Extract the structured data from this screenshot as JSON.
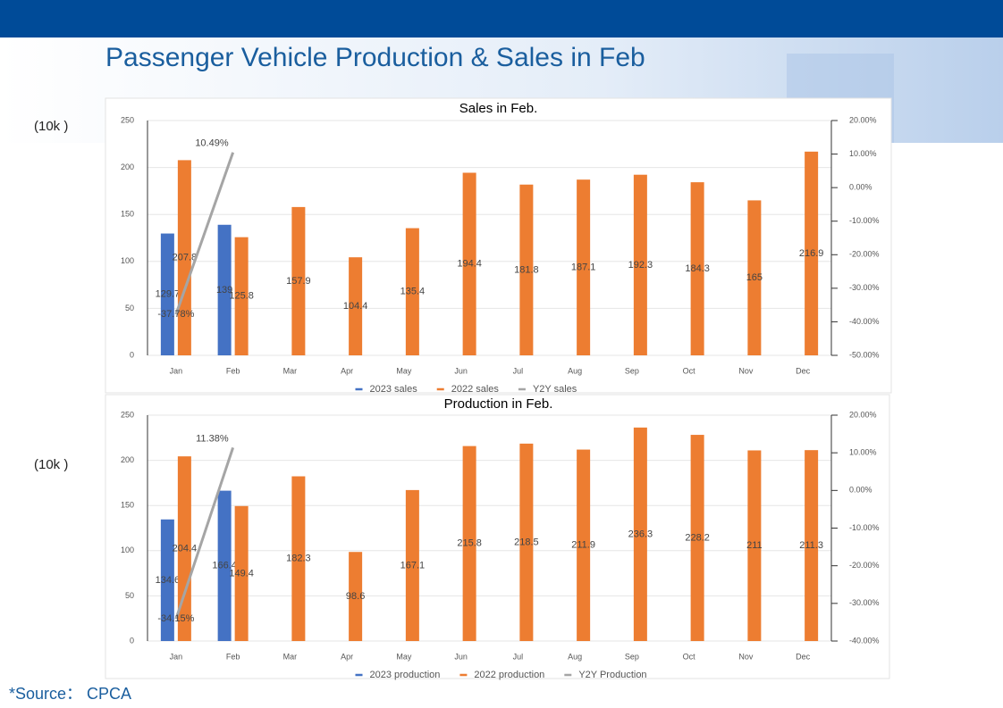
{
  "title": "Passenger Vehicle Production & Sales in Feb",
  "source": "*Source： CPCA",
  "chart_data": [
    {
      "type": "bar",
      "title": "Sales in Feb.",
      "y_unit": "(10k )",
      "categories": [
        "Jan",
        "Feb",
        "Mar",
        "Apr",
        "May",
        "Jun",
        "Jul",
        "Aug",
        "Sep",
        "Oct",
        "Nov",
        "Dec"
      ],
      "series": [
        {
          "name": "2023 sales",
          "color": "#4472c4",
          "values": [
            129.7,
            139,
            null,
            null,
            null,
            null,
            null,
            null,
            null,
            null,
            null,
            null
          ]
        },
        {
          "name": "2022 sales",
          "color": "#ed7d31",
          "values": [
            207.8,
            125.8,
            157.9,
            104.4,
            135.4,
            194.4,
            181.8,
            187.1,
            192.3,
            184.3,
            165,
            216.9
          ]
        },
        {
          "name": "Y2Y sales",
          "color": "#a5a5a5",
          "type": "line",
          "axis": "y2",
          "values": [
            -37.78,
            10.49,
            null,
            null,
            null,
            null,
            null,
            null,
            null,
            null,
            null,
            null
          ],
          "value_labels": [
            "-37.78%",
            "10.49%",
            null,
            null,
            null,
            null,
            null,
            null,
            null,
            null,
            null,
            null
          ]
        }
      ],
      "ylim": [
        0,
        250
      ],
      "yticks": [
        0,
        50,
        100,
        150,
        200,
        250
      ],
      "y2lim": [
        -50,
        20
      ],
      "y2ticks": [
        {
          "value": -50,
          "label": "-50.00%"
        },
        {
          "value": -40,
          "label": "-40.00%"
        },
        {
          "value": -30,
          "label": "-30.00%"
        },
        {
          "value": -20,
          "label": "-20.00%"
        },
        {
          "value": -10,
          "label": "-10.00%"
        },
        {
          "value": 0,
          "label": "0.00%"
        },
        {
          "value": 10,
          "label": "10.00%"
        },
        {
          "value": 20,
          "label": "20.00%"
        }
      ],
      "grid": true,
      "legend": "bottom"
    },
    {
      "type": "bar",
      "title": "Production in Feb.",
      "y_unit": "(10k )",
      "categories": [
        "Jan",
        "Feb",
        "Mar",
        "Apr",
        "May",
        "Jun",
        "Jul",
        "Aug",
        "Sep",
        "Oct",
        "Nov",
        "Dec"
      ],
      "series": [
        {
          "name": "2023 production",
          "color": "#4472c4",
          "values": [
            134.6,
            166.4,
            null,
            null,
            null,
            null,
            null,
            null,
            null,
            null,
            null,
            null
          ]
        },
        {
          "name": "2022 production",
          "color": "#ed7d31",
          "values": [
            204.4,
            149.4,
            182.3,
            98.6,
            167.1,
            215.8,
            218.5,
            211.9,
            236.3,
            228.2,
            211,
            211.3
          ]
        },
        {
          "name": "Y2Y Production",
          "color": "#a5a5a5",
          "type": "line",
          "axis": "y2",
          "values": [
            -34.15,
            11.38,
            null,
            null,
            null,
            null,
            null,
            null,
            null,
            null,
            null,
            null
          ],
          "value_labels": [
            "-34.15%",
            "11.38%",
            null,
            null,
            null,
            null,
            null,
            null,
            null,
            null,
            null,
            null
          ]
        }
      ],
      "ylim": [
        0,
        250
      ],
      "yticks": [
        0,
        50,
        100,
        150,
        200,
        250
      ],
      "y2lim": [
        -40,
        20
      ],
      "y2ticks": [
        {
          "value": -40,
          "label": "-40.00%"
        },
        {
          "value": -30,
          "label": "-30.00%"
        },
        {
          "value": -20,
          "label": "-20.00%"
        },
        {
          "value": -10,
          "label": "-10.00%"
        },
        {
          "value": 0,
          "label": "0.00%"
        },
        {
          "value": 10,
          "label": "10.00%"
        },
        {
          "value": 20,
          "label": "20.00%"
        }
      ],
      "grid": true,
      "legend": "bottom"
    }
  ]
}
